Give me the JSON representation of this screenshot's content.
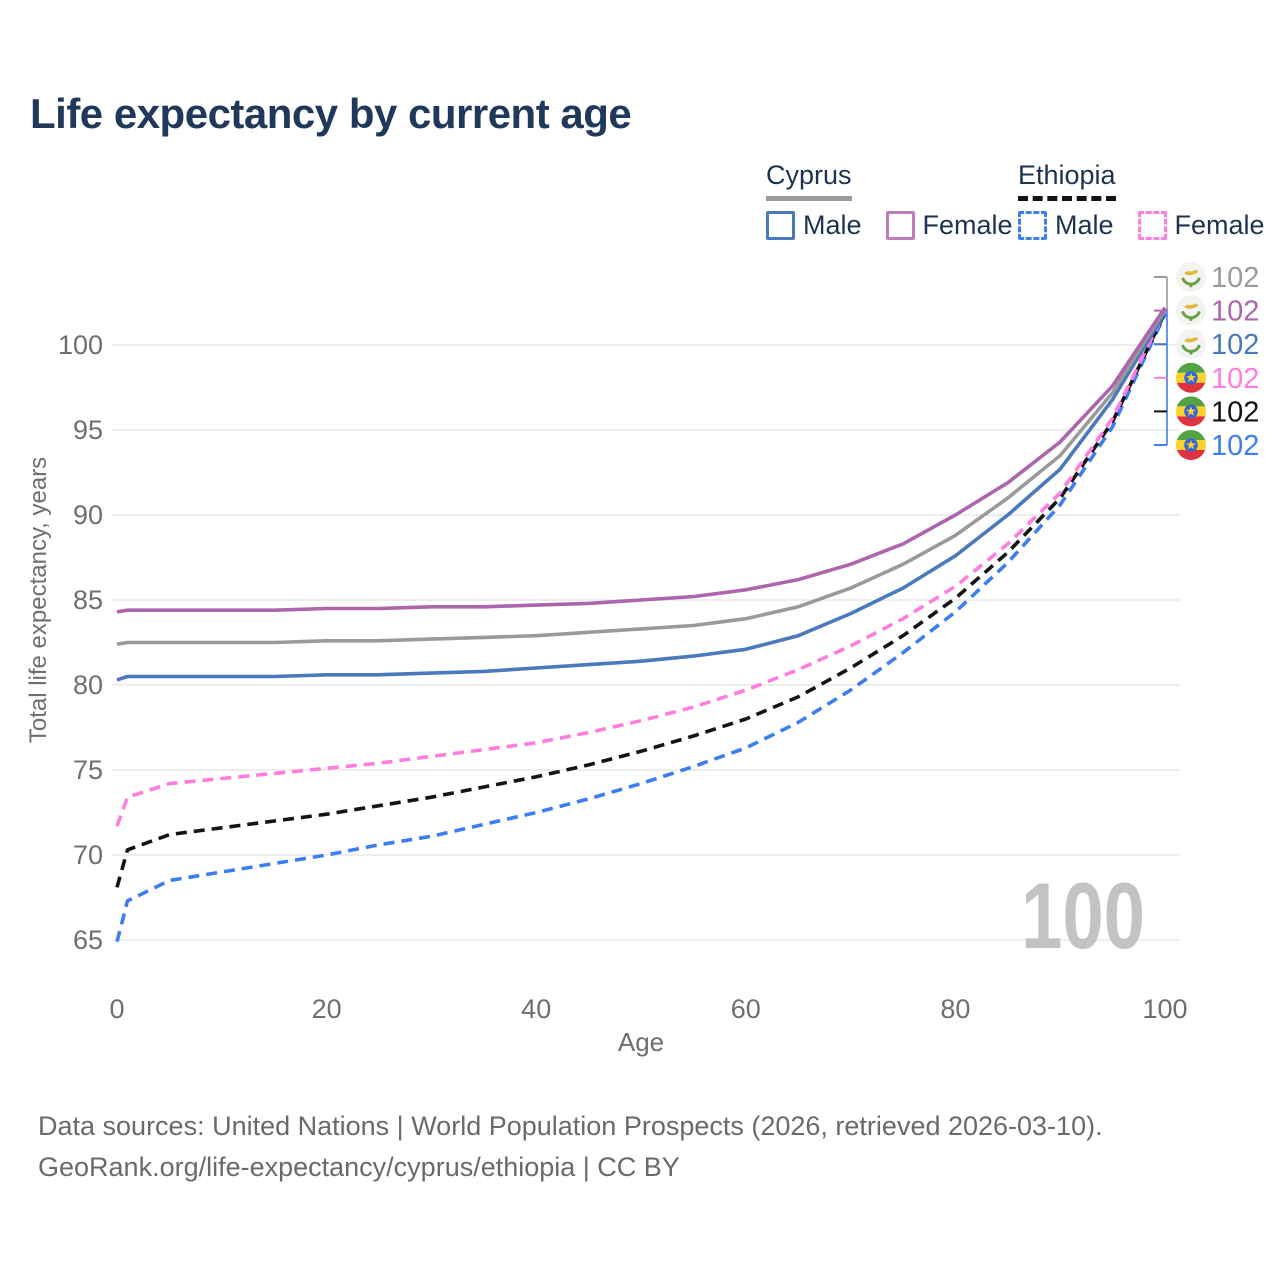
{
  "title": "Life expectancy by current age",
  "legend": {
    "groups": [
      {
        "country": "Cyprus",
        "line_style": "solid",
        "line_color": "#9a9a9a",
        "items": [
          {
            "label": "Male",
            "color": "#4b79bd",
            "dash": "solid"
          },
          {
            "label": "Female",
            "color": "#bd7cba",
            "dash": "solid"
          }
        ]
      },
      {
        "country": "Ethiopia",
        "line_style": "dashed",
        "line_color": "#141414",
        "items": [
          {
            "label": "Male",
            "color": "#3c7ef0",
            "dash": "dashed"
          },
          {
            "label": "Female",
            "color": "#ff7ddf",
            "dash": "dashed"
          }
        ]
      }
    ]
  },
  "watermark": "100",
  "side_labels": [
    {
      "country": "Cyprus",
      "series": "Cyprus All",
      "value": "102",
      "color": "#9a9a9a"
    },
    {
      "country": "Cyprus",
      "series": "Cyprus Female",
      "value": "102",
      "color": "#ad66ad"
    },
    {
      "country": "Cyprus",
      "series": "Cyprus Male",
      "value": "102",
      "color": "#4b79bd"
    },
    {
      "country": "Ethiopia",
      "series": "Ethiopia Female",
      "value": "102",
      "color": "#ff7ddf"
    },
    {
      "country": "Ethiopia",
      "series": "Ethiopia All",
      "value": "102",
      "color": "#141414"
    },
    {
      "country": "Ethiopia",
      "series": "Ethiopia Male",
      "value": "102",
      "color": "#3c7ef0"
    }
  ],
  "footer": {
    "line1": "Data sources: United Nations | World Population Prospects (2026, retrieved 2026-03-10).",
    "line2": "GeoRank.org/life-expectancy/cyprus/ethiopia | CC BY"
  },
  "chart_data": {
    "type": "line",
    "title": "Life expectancy by current age",
    "xlabel": "Age",
    "ylabel": "Total life expectancy, years",
    "xlim": [
      0,
      100
    ],
    "ylim": [
      63,
      103
    ],
    "xticks": [
      0,
      20,
      40,
      60,
      80,
      100
    ],
    "yticks": [
      65,
      70,
      75,
      80,
      85,
      90,
      95,
      100
    ],
    "grid": "horizontal",
    "legend_position": "top-right",
    "x": [
      0,
      1,
      5,
      10,
      15,
      20,
      25,
      30,
      35,
      40,
      45,
      50,
      55,
      60,
      65,
      70,
      75,
      80,
      85,
      90,
      95,
      100
    ],
    "series": [
      {
        "name": "Ethiopia Male",
        "country": "Ethiopia",
        "sex": "male",
        "color": "#3c7ef0",
        "dash": "dashed",
        "end_label": 102,
        "values": [
          64.9,
          67.3,
          68.5,
          69.0,
          69.5,
          70.0,
          70.6,
          71.1,
          71.8,
          72.5,
          73.3,
          74.2,
          75.2,
          76.3,
          77.8,
          79.7,
          81.9,
          84.3,
          87.2,
          90.6,
          95.2,
          101.8
        ]
      },
      {
        "name": "Ethiopia All",
        "country": "Ethiopia",
        "sex": "all",
        "color": "#141414",
        "dash": "dashed",
        "end_label": 102,
        "values": [
          68.1,
          70.3,
          71.2,
          71.6,
          72.0,
          72.4,
          72.9,
          73.4,
          74.0,
          74.6,
          75.3,
          76.1,
          77.0,
          78.0,
          79.3,
          81.0,
          82.9,
          85.1,
          87.8,
          91.0,
          95.5,
          101.9
        ]
      },
      {
        "name": "Ethiopia Female",
        "country": "Ethiopia",
        "sex": "female",
        "color": "#ff7ddf",
        "dash": "dashed",
        "end_label": 102,
        "values": [
          71.7,
          73.4,
          74.2,
          74.5,
          74.8,
          75.1,
          75.4,
          75.8,
          76.2,
          76.6,
          77.2,
          77.9,
          78.7,
          79.7,
          80.9,
          82.3,
          83.9,
          85.8,
          88.3,
          91.3,
          95.7,
          102.0
        ]
      },
      {
        "name": "Cyprus Male",
        "country": "Cyprus",
        "sex": "male",
        "color": "#4b79bd",
        "dash": "solid",
        "end_label": 102,
        "values": [
          80.3,
          80.5,
          80.5,
          80.5,
          80.5,
          80.6,
          80.6,
          80.7,
          80.8,
          81.0,
          81.2,
          81.4,
          81.7,
          82.1,
          82.9,
          84.2,
          85.7,
          87.6,
          90.0,
          92.7,
          96.8,
          101.9
        ]
      },
      {
        "name": "Cyprus All",
        "country": "Cyprus",
        "sex": "all",
        "color": "#9a9a9a",
        "dash": "solid",
        "end_label": 102,
        "values": [
          82.4,
          82.5,
          82.5,
          82.5,
          82.5,
          82.6,
          82.6,
          82.7,
          82.8,
          82.9,
          83.1,
          83.3,
          83.5,
          83.9,
          84.6,
          85.7,
          87.1,
          88.8,
          91.0,
          93.5,
          97.2,
          102.1
        ]
      },
      {
        "name": "Cyprus Female",
        "country": "Cyprus",
        "sex": "female",
        "color": "#ad66ad",
        "dash": "solid",
        "end_label": 102,
        "values": [
          84.3,
          84.4,
          84.4,
          84.4,
          84.4,
          84.5,
          84.5,
          84.6,
          84.6,
          84.7,
          84.8,
          85.0,
          85.2,
          85.6,
          86.2,
          87.1,
          88.3,
          90.0,
          91.9,
          94.3,
          97.6,
          102.2
        ]
      }
    ]
  }
}
